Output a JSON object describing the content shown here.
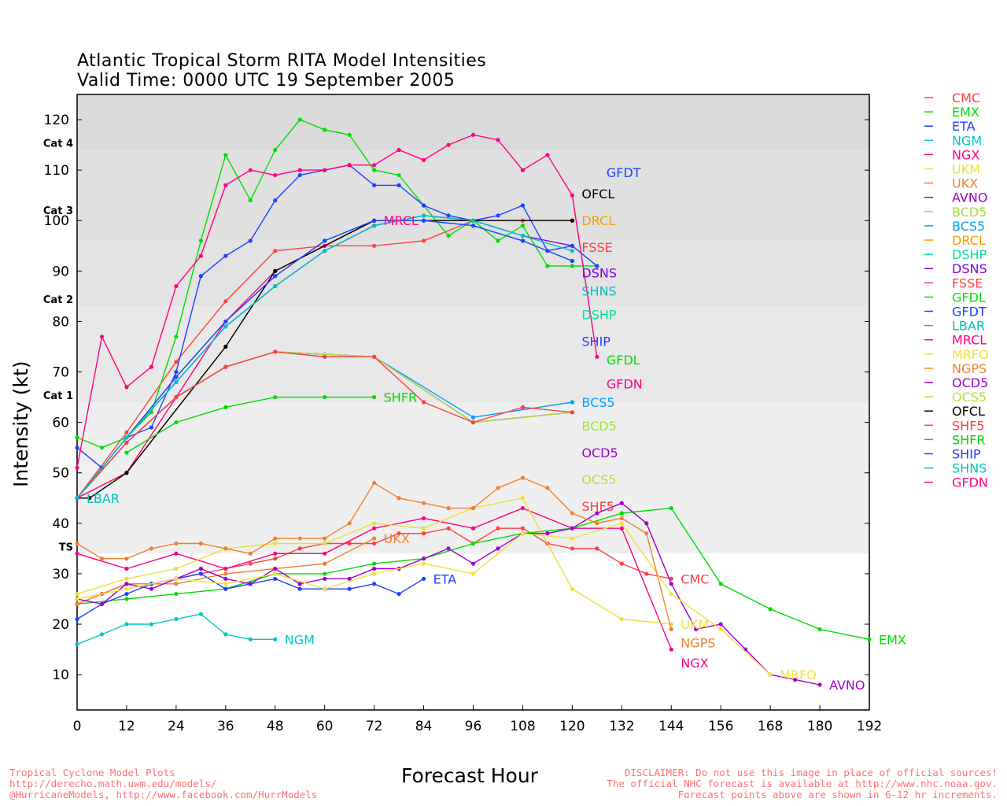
{
  "title_line1": "Atlantic Tropical Storm RITA Model Intensities",
  "title_line2": "Valid Time: 0000 UTC 19 September 2005",
  "footer_left": [
    "Tropical Cyclone Model Plots",
    "http://derecho.math.uwm.edu/models/",
    "@HurricaneModels, http://www.facebook.com/HurrModels"
  ],
  "footer_right": [
    "DISCLAIMER: Do not use this image in place of official sources!",
    "The official NHC forecast is available at http://www.nhc.noaa.gov.",
    "Forecast points above are shown in 6-12 hr increments."
  ],
  "chart_data": {
    "type": "line",
    "title": "Atlantic Tropical Storm RITA Model Intensities",
    "subtitle": "Valid Time: 0000 UTC 19 September 2005",
    "xlabel": "Forecast Hour",
    "ylabel": "Intensity (kt)",
    "xlim": [
      0,
      192
    ],
    "ylim": [
      3,
      125
    ],
    "xticks": [
      0,
      12,
      24,
      36,
      48,
      60,
      72,
      84,
      96,
      108,
      120,
      132,
      144,
      156,
      168,
      180,
      192
    ],
    "yticks": [
      10,
      20,
      30,
      40,
      50,
      60,
      70,
      80,
      90,
      100,
      110,
      120
    ],
    "categories": [
      {
        "label": "TS",
        "min": 34,
        "max": 64,
        "color": "#efefef"
      },
      {
        "label": "Cat 1",
        "min": 64,
        "max": 83,
        "color": "#e8e8e8"
      },
      {
        "label": "Cat 2",
        "min": 83,
        "max": 96,
        "color": "#e3e3e3"
      },
      {
        "label": "Cat 3",
        "min": 96,
        "max": 114,
        "color": "#e0e0e0"
      },
      {
        "label": "Cat 4",
        "min": 114,
        "max": 125,
        "color": "#dadada"
      }
    ],
    "legend_position": "right-outside",
    "series": [
      {
        "name": "CMC",
        "color": "#ff4040",
        "x": [
          0,
          6,
          12,
          18,
          24,
          30,
          36,
          42,
          48,
          54,
          60,
          66,
          72,
          78,
          84,
          90,
          96,
          102,
          108,
          114,
          120,
          126,
          132,
          138,
          144
        ],
        "y": [
          24,
          26,
          28,
          28,
          29,
          30,
          31,
          32,
          33,
          35,
          36,
          36,
          36,
          38,
          38,
          39,
          36,
          39,
          39,
          36,
          35,
          35,
          32,
          30,
          29
        ]
      },
      {
        "name": "EMX",
        "color": "#00dd00",
        "x": [
          0,
          12,
          24,
          36,
          48,
          60,
          72,
          84,
          96,
          108,
          120,
          132,
          144,
          156,
          168,
          180,
          192
        ],
        "y": [
          24,
          25,
          26,
          27,
          30,
          30,
          32,
          33,
          36,
          38,
          39,
          42,
          43,
          28,
          23,
          19,
          17
        ]
      },
      {
        "name": "ETA",
        "color": "#2040ff",
        "x": [
          0,
          6,
          12,
          18,
          24,
          30,
          36,
          42,
          48,
          54,
          60,
          66,
          72,
          78,
          84
        ],
        "y": [
          21,
          24,
          26,
          28,
          29,
          30,
          27,
          28,
          29,
          27,
          27,
          27,
          28,
          26,
          29
        ]
      },
      {
        "name": "NGM",
        "color": "#00c8c8",
        "x": [
          0,
          6,
          12,
          18,
          24,
          30,
          36,
          42,
          48
        ],
        "y": [
          16,
          18,
          20,
          20,
          21,
          22,
          18,
          17,
          17
        ]
      },
      {
        "name": "NGX",
        "color": "#ff0080",
        "x": [
          0,
          12,
          24,
          36,
          48,
          60,
          72,
          84,
          96,
          108,
          120,
          132,
          144
        ],
        "y": [
          34,
          31,
          34,
          31,
          34,
          34,
          39,
          41,
          39,
          43,
          39,
          39,
          15
        ]
      },
      {
        "name": "UKM",
        "color": "#e8e040",
        "x": [
          0,
          12,
          24,
          36,
          48,
          60,
          72,
          84,
          96,
          108,
          120,
          132,
          144
        ],
        "y": [
          26,
          29,
          31,
          35,
          36,
          36,
          40,
          39,
          43,
          45,
          27,
          21,
          20
        ]
      },
      {
        "name": "UKX",
        "color": "#f08030",
        "x": [
          0,
          12,
          24,
          36,
          48,
          60,
          72
        ],
        "y": [
          24,
          28,
          28,
          30,
          31,
          32,
          37
        ]
      },
      {
        "name": "AVNO",
        "color": "#a000d0",
        "x": [
          0,
          6,
          12,
          18,
          24,
          30,
          36,
          42,
          48,
          54,
          60,
          66,
          72,
          78,
          84,
          90,
          96,
          102,
          108,
          114,
          120,
          126,
          132,
          138,
          144,
          150,
          156,
          162,
          168,
          174,
          180
        ],
        "y": [
          25,
          24,
          28,
          27,
          29,
          31,
          29,
          28,
          31,
          28,
          29,
          29,
          31,
          31,
          33,
          35,
          32,
          35,
          38,
          38,
          39,
          42,
          44,
          40,
          28,
          19,
          20,
          15,
          10,
          9,
          8
        ]
      },
      {
        "name": "BCD5",
        "color": "#a0e040",
        "x": [
          0,
          12,
          24,
          36,
          48,
          60,
          72,
          96,
          120
        ],
        "y": [
          45,
          56,
          65,
          71,
          74,
          73.5,
          73,
          60,
          62
        ]
      },
      {
        "name": "BCS5",
        "color": "#00a0ff",
        "x": [
          0,
          12,
          24,
          36,
          48,
          60,
          72,
          96,
          120
        ],
        "y": [
          45,
          56,
          65,
          71,
          74,
          73,
          73,
          61,
          64
        ]
      },
      {
        "name": "DRCL",
        "color": "#f0a000",
        "x": [
          0,
          12,
          36,
          48,
          72,
          84,
          120
        ],
        "y": [
          45,
          50,
          75,
          90,
          100,
          100,
          100
        ]
      },
      {
        "name": "DSHP",
        "color": "#00e0a0",
        "x": [
          0,
          12,
          24,
          36,
          48,
          60,
          72,
          84,
          96,
          108,
          120
        ],
        "y": [
          45,
          57,
          69,
          80,
          89,
          96,
          100,
          100,
          99,
          96,
          92
        ]
      },
      {
        "name": "DSNS",
        "color": "#8000e0",
        "x": [
          0,
          12,
          24,
          36,
          48,
          60,
          72,
          84,
          96,
          108,
          120
        ],
        "y": [
          45,
          57,
          68,
          79,
          87,
          94,
          99,
          101,
          100,
          97,
          95
        ]
      },
      {
        "name": "FSSE",
        "color": "#ff4040",
        "x": [
          0,
          12,
          24,
          36,
          48,
          60,
          72,
          84,
          96,
          108,
          120
        ],
        "y": [
          45,
          58,
          72,
          84,
          94,
          95,
          95,
          96,
          100,
          100,
          100
        ]
      },
      {
        "name": "GFDL",
        "color": "#00dd00",
        "x": [
          0,
          6,
          12,
          18,
          24,
          30,
          36,
          42,
          48,
          54,
          60,
          66,
          72,
          78,
          84,
          90,
          96,
          102,
          108,
          114,
          120,
          126
        ],
        "y": [
          57,
          55,
          57,
          62,
          77,
          96,
          113,
          104,
          114,
          120,
          118,
          117,
          110,
          109,
          103,
          97,
          100,
          96,
          99,
          91,
          91,
          91
        ]
      },
      {
        "name": "GFDT",
        "color": "#2040ff",
        "x": [
          0,
          6,
          12,
          18,
          24,
          30,
          36,
          42,
          48,
          54,
          60,
          66,
          72,
          78,
          84,
          90,
          96,
          102,
          108,
          114,
          120,
          126
        ],
        "y": [
          55,
          51,
          57,
          59,
          70,
          89,
          93,
          96,
          104,
          109,
          110,
          111,
          107,
          107,
          103,
          101,
          100,
          101,
          103,
          94,
          95,
          91
        ]
      },
      {
        "name": "LBAR",
        "color": "#00c0c0",
        "x": [
          0
        ],
        "y": [
          45
        ]
      },
      {
        "name": "MRCL",
        "color": "#ff0080",
        "x": [
          0,
          12,
          24,
          36,
          48,
          60,
          72
        ],
        "y": [
          45,
          50,
          65,
          80,
          90,
          95,
          100
        ]
      },
      {
        "name": "MRFO",
        "color": "#f0e040",
        "x": [
          0,
          12,
          24,
          36,
          48,
          60,
          72,
          84,
          96,
          108,
          120,
          132,
          144,
          156,
          168
        ],
        "y": [
          25,
          27,
          29,
          28,
          30,
          27,
          30,
          32,
          30,
          38,
          37,
          40,
          26,
          19,
          10
        ]
      },
      {
        "name": "NGPS",
        "color": "#f08030",
        "x": [
          0,
          6,
          12,
          18,
          24,
          30,
          36,
          42,
          48,
          54,
          60,
          66,
          72,
          78,
          84,
          90,
          96,
          102,
          108,
          114,
          120,
          126,
          132,
          138,
          144
        ],
        "y": [
          36,
          33,
          33,
          35,
          36,
          36,
          35,
          34,
          37,
          37,
          37,
          40,
          48,
          45,
          44,
          43,
          43,
          47,
          49,
          47,
          42,
          40,
          41,
          38,
          19
        ]
      },
      {
        "name": "OCD5",
        "color": "#a000d0",
        "x": [
          0,
          12,
          24,
          36,
          48,
          60,
          72,
          96,
          120
        ],
        "y": [
          45,
          56,
          65,
          71,
          74,
          73.5,
          73,
          60,
          62
        ]
      },
      {
        "name": "OCS5",
        "color": "#b0e040",
        "x": [
          0,
          12,
          24,
          36,
          48,
          60,
          72,
          96,
          120
        ],
        "y": [
          45,
          56,
          65,
          71,
          74,
          73.5,
          73,
          60,
          62
        ]
      },
      {
        "name": "OFCL",
        "color": "#000000",
        "x": [
          0,
          3,
          12,
          36,
          48,
          72,
          120
        ],
        "y": [
          45,
          45,
          50,
          75,
          90,
          100,
          100
        ]
      },
      {
        "name": "SHF5",
        "color": "#ff4040",
        "x": [
          0,
          12,
          24,
          36,
          48,
          60,
          72,
          84,
          96,
          108,
          120
        ],
        "y": [
          45,
          56,
          65,
          71,
          74,
          73,
          73,
          64,
          60,
          63,
          62
        ]
      },
      {
        "name": "SHFR",
        "color": "#00dd00",
        "x": [
          12,
          24,
          36,
          48,
          60,
          72
        ],
        "y": [
          54,
          60,
          63,
          65,
          65,
          65
        ]
      },
      {
        "name": "SHIP",
        "color": "#2040ff",
        "x": [
          0,
          12,
          24,
          36,
          48,
          60,
          72,
          84,
          96,
          108,
          120
        ],
        "y": [
          45,
          57,
          69,
          80,
          89,
          96,
          100,
          100,
          99,
          96,
          92
        ]
      },
      {
        "name": "SHNS",
        "color": "#00c0c0",
        "x": [
          0,
          12,
          24,
          36,
          48,
          60,
          72,
          84,
          96,
          108,
          120
        ],
        "y": [
          45,
          57,
          68,
          79,
          87,
          94,
          99,
          101,
          100,
          97,
          94
        ]
      },
      {
        "name": "GFDN",
        "color": "#ff0080",
        "x": [
          0,
          6,
          12,
          18,
          24,
          30,
          36,
          42,
          48,
          54,
          60,
          66,
          72,
          78,
          84,
          90,
          96,
          102,
          108,
          114,
          120,
          126
        ],
        "y": [
          51,
          77,
          67,
          71,
          87,
          93,
          107,
          110,
          109,
          110,
          110,
          111,
          111,
          114,
          112,
          115,
          117,
          116,
          110,
          113,
          105,
          73
        ]
      }
    ]
  }
}
